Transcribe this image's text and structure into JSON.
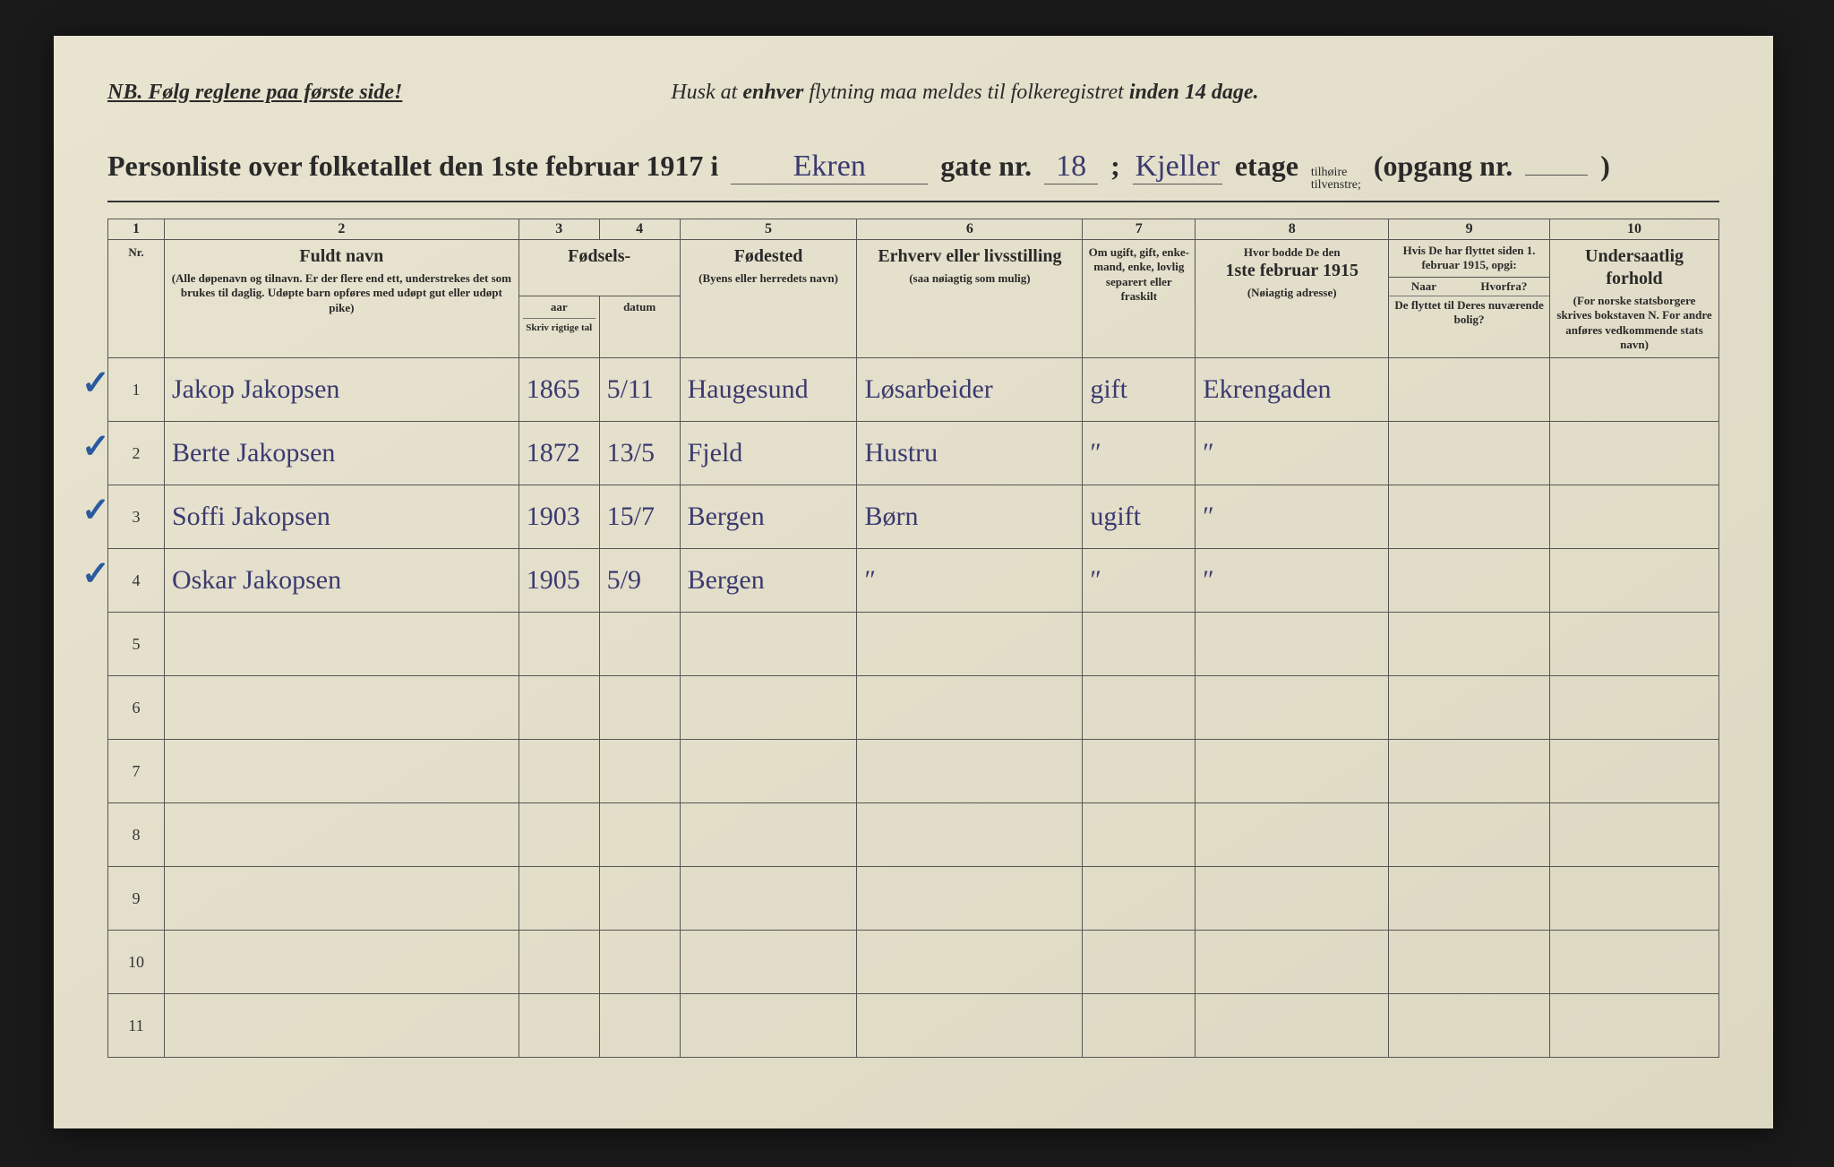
{
  "header": {
    "nb": "NB.  Følg reglene paa første side!",
    "reminder_pre": "Husk at ",
    "reminder_b1": "enhver",
    "reminder_mid": " flytning maa meldes til folkeregistret ",
    "reminder_b2": "inden 14 dage."
  },
  "title": {
    "prefix": "Personliste over folketallet den 1ste februar 1917 i",
    "street": "Ekren",
    "gate_label": "gate nr.",
    "gate_value": "18",
    "semicolon": ";",
    "etage_value": "Kjeller",
    "etage_label": "etage",
    "side_top": "tilhøire",
    "side_bottom": "tilvenstre;",
    "opgang": "(opgang nr.",
    "close": ")"
  },
  "columns": {
    "numbers": [
      "1",
      "2",
      "3",
      "4",
      "5",
      "6",
      "7",
      "8",
      "9",
      "10"
    ],
    "c1": {
      "big": "",
      "small": "Nr."
    },
    "c2": {
      "big": "Fuldt navn",
      "small": "(Alle døpenavn og tilnavn. Er der flere end ett, understrekes det som brukes til daglig. Udøpte barn opføres med udøpt gut eller udøpt pike)"
    },
    "c3_4": {
      "big": "Fødsels-",
      "sub_a": "aar",
      "sub_b": "datum",
      "small": "Skriv rigtige tal"
    },
    "c5": {
      "big": "Fødested",
      "small": "(Byens eller herredets navn)"
    },
    "c6": {
      "big": "Erhverv eller livsstilling",
      "small": "(saa nøiagtig som mulig)"
    },
    "c7": {
      "small": "Om ugift, gift, enke-mand, enke, lovlig separert eller fraskilt"
    },
    "c8": {
      "big_pre": "Hvor bodde De den",
      "big": "1ste februar 1915",
      "small": "(Nøiagtig adresse)"
    },
    "c9": {
      "top": "Hvis De har flyttet siden 1. februar 1915, opgi:",
      "naar": "Naar",
      "hvorfra": "Hvorfra?",
      "bottom": "De flyttet til Deres nuværende bolig?"
    },
    "c10": {
      "big": "Undersaatlig forhold",
      "small": "(For norske statsborgere skrives bokstaven N. For andre anføres vedkommende stats navn)"
    }
  },
  "rows": [
    {
      "check": "✓",
      "nr": "1",
      "name": "Jakop Jakopsen",
      "year": "1865",
      "date": "5/11",
      "place": "Haugesund",
      "occ": "Løsarbeider",
      "stat": "gift",
      "addr": "Ekrengaden",
      "c9": "",
      "c10": ""
    },
    {
      "check": "✓",
      "nr": "2",
      "name": "Berte Jakopsen",
      "year": "1872",
      "date": "13/5",
      "place": "Fjeld",
      "occ": "Hustru",
      "stat": "″",
      "addr": "″",
      "c9": "",
      "c10": ""
    },
    {
      "check": "✓",
      "nr": "3",
      "name": "Soffi Jakopsen",
      "year": "1903",
      "date": "15/7",
      "place": "Bergen",
      "occ": "Børn",
      "stat": "ugift",
      "addr": "″",
      "c9": "",
      "c10": ""
    },
    {
      "check": "✓",
      "nr": "4",
      "name": "Oskar Jakopsen",
      "year": "1905",
      "date": "5/9",
      "place": "Bergen",
      "occ": "″",
      "stat": "″",
      "addr": "″",
      "c9": "",
      "c10": ""
    },
    {
      "check": "",
      "nr": "5",
      "name": "",
      "year": "",
      "date": "",
      "place": "",
      "occ": "",
      "stat": "",
      "addr": "",
      "c9": "",
      "c10": ""
    },
    {
      "check": "",
      "nr": "6",
      "name": "",
      "year": "",
      "date": "",
      "place": "",
      "occ": "",
      "stat": "",
      "addr": "",
      "c9": "",
      "c10": ""
    },
    {
      "check": "",
      "nr": "7",
      "name": "",
      "year": "",
      "date": "",
      "place": "",
      "occ": "",
      "stat": "",
      "addr": "",
      "c9": "",
      "c10": ""
    },
    {
      "check": "",
      "nr": "8",
      "name": "",
      "year": "",
      "date": "",
      "place": "",
      "occ": "",
      "stat": "",
      "addr": "",
      "c9": "",
      "c10": ""
    },
    {
      "check": "",
      "nr": "9",
      "name": "",
      "year": "",
      "date": "",
      "place": "",
      "occ": "",
      "stat": "",
      "addr": "",
      "c9": "",
      "c10": ""
    },
    {
      "check": "",
      "nr": "10",
      "name": "",
      "year": "",
      "date": "",
      "place": "",
      "occ": "",
      "stat": "",
      "addr": "",
      "c9": "",
      "c10": ""
    },
    {
      "check": "",
      "nr": "11",
      "name": "",
      "year": "",
      "date": "",
      "place": "",
      "occ": "",
      "stat": "",
      "addr": "",
      "c9": "",
      "c10": ""
    }
  ],
  "style": {
    "paper_bg": "#e8e4d0",
    "ink": "#2a2a2a",
    "handwriting": "#3a3a70",
    "checkmark": "#2a5aa0",
    "border": "#555555",
    "col_widths_pct": [
      3.5,
      22,
      5,
      5,
      11,
      14,
      7,
      12,
      10,
      10.5
    ]
  }
}
